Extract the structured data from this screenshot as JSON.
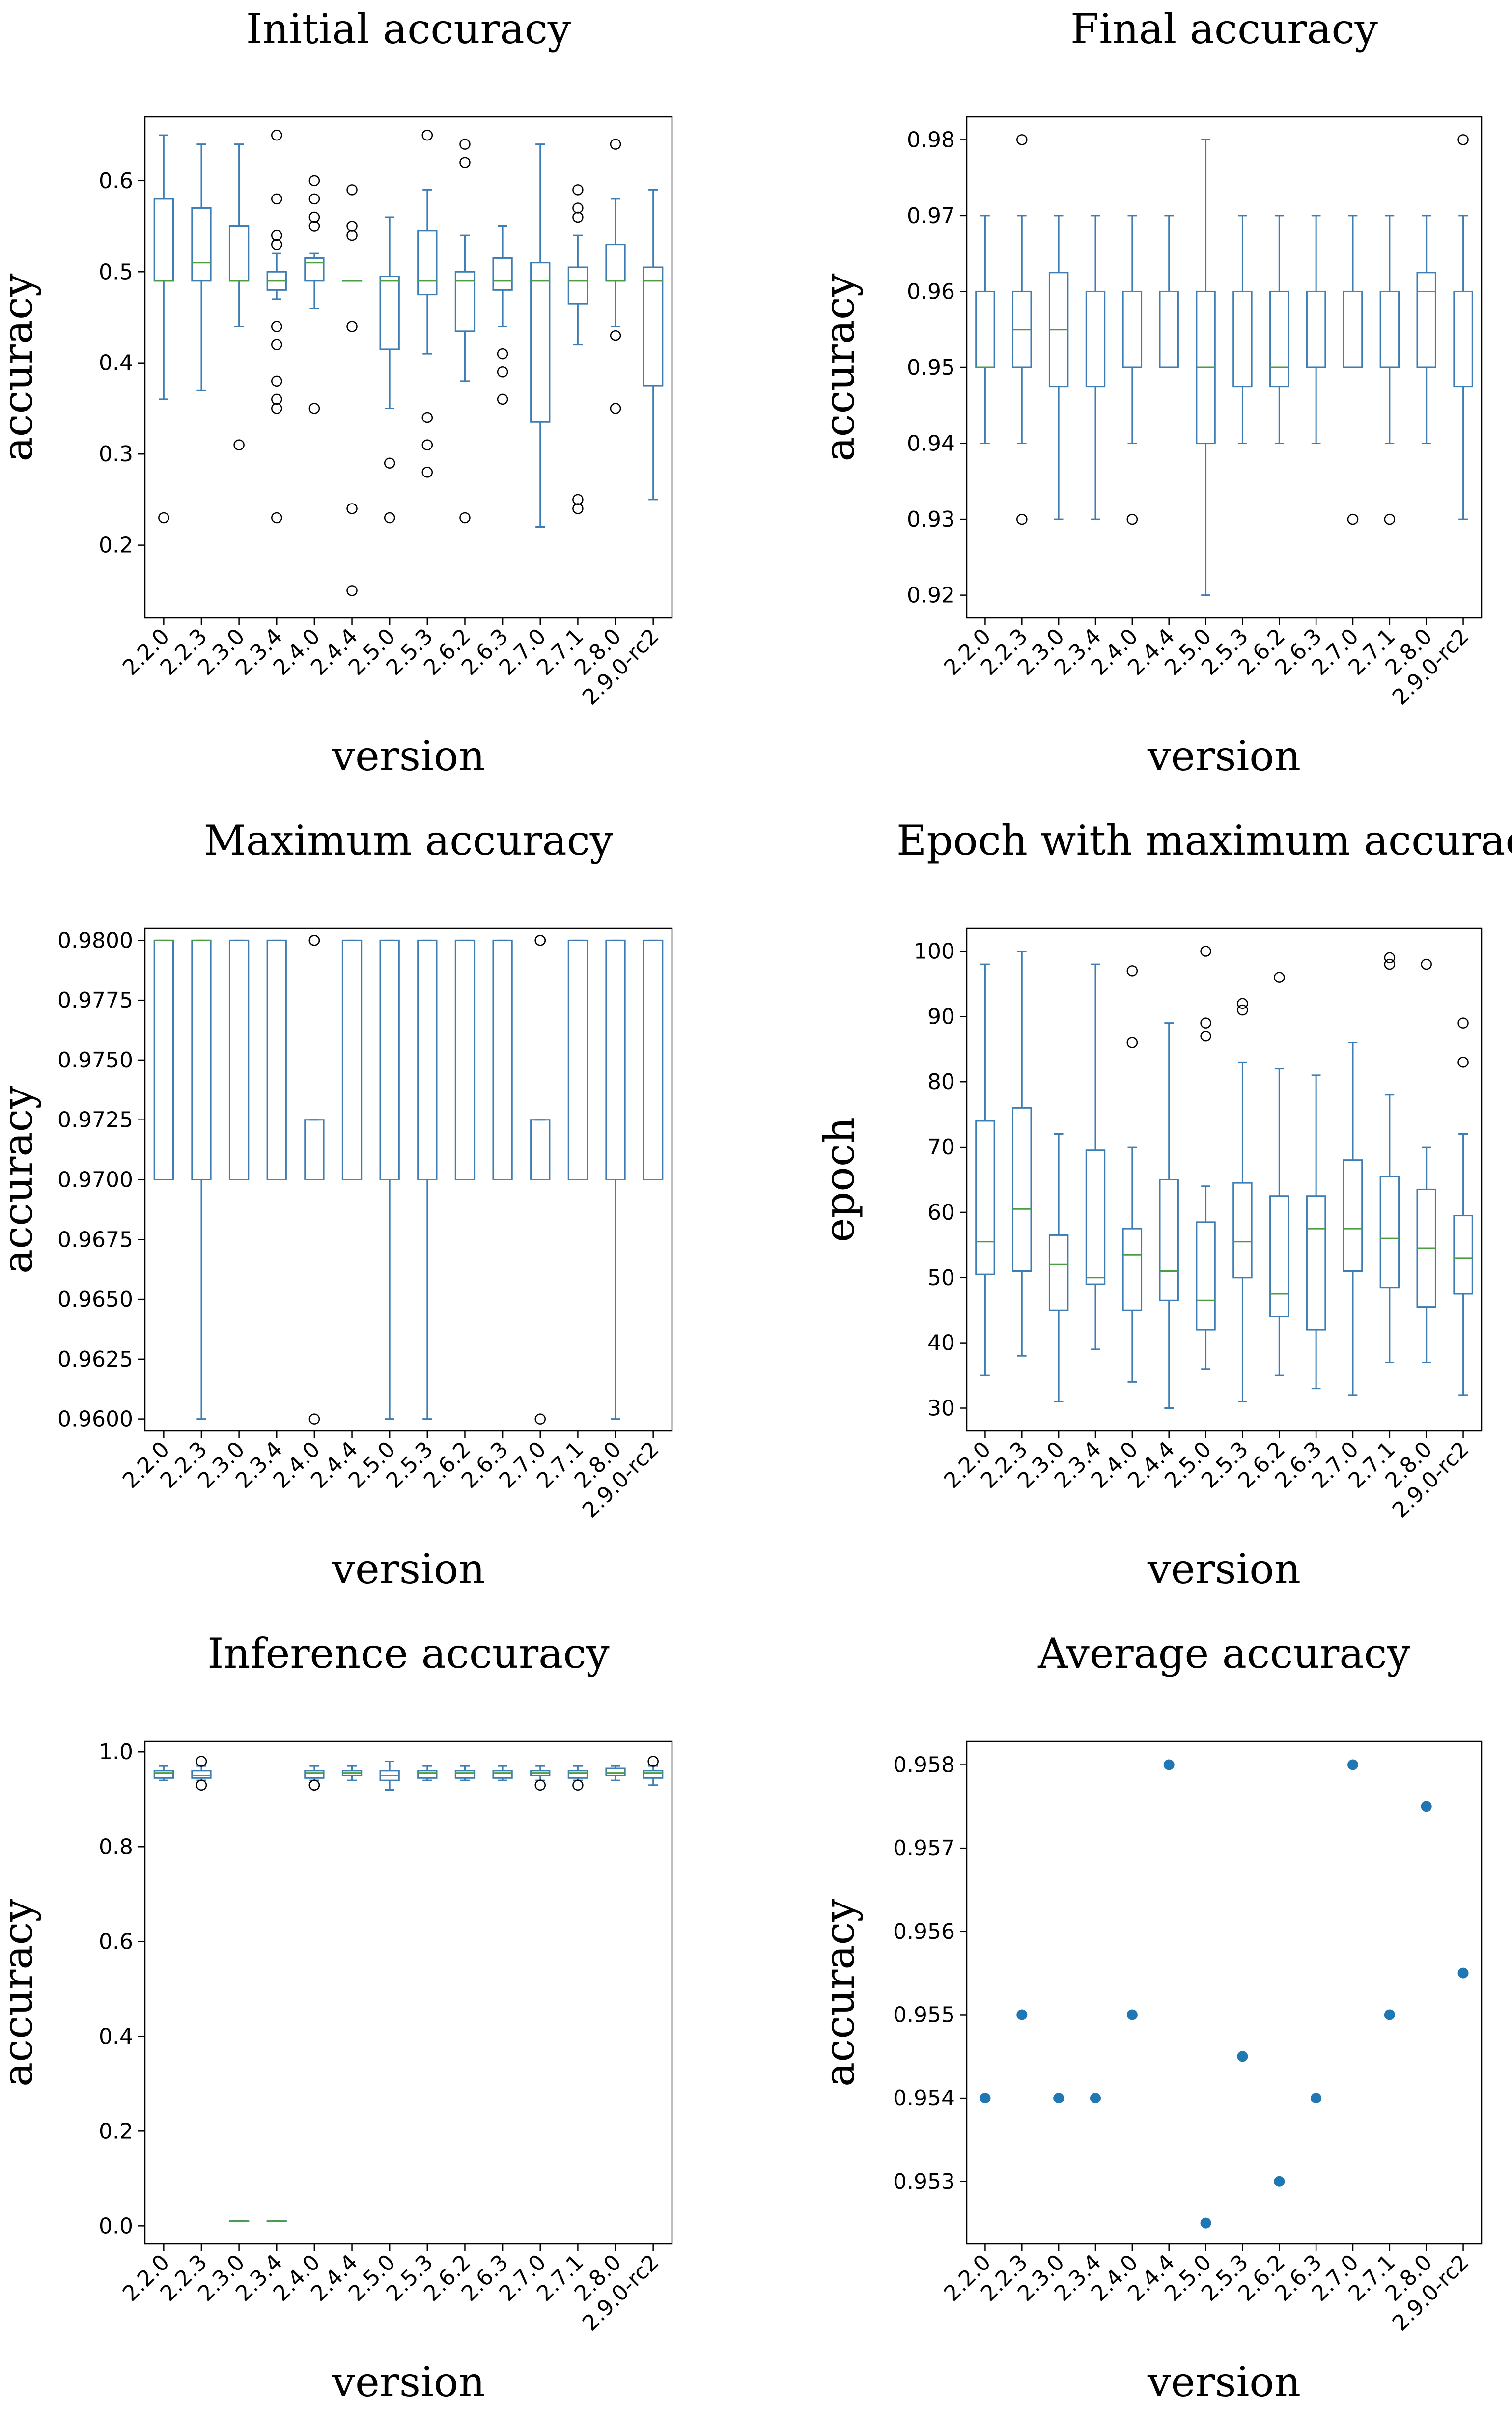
{
  "colors": {
    "box": "#3b7db4",
    "median": "#4a9e3f",
    "flier": "#000000",
    "scatter": "#1f77b4",
    "frame": "#000000"
  },
  "chart_data": [
    {
      "id": "initial",
      "type": "box",
      "title": "Initial accuracy",
      "xlabel": "version",
      "ylabel": "accuracy",
      "ylim": [
        0.12,
        0.67
      ],
      "yticks": [
        "0.2",
        "0.3",
        "0.4",
        "0.5",
        "0.6"
      ],
      "ytick_values": [
        0.2,
        0.3,
        0.4,
        0.5,
        0.6
      ],
      "categories": [
        "2.2.0",
        "2.2.3",
        "2.3.0",
        "2.3.4",
        "2.4.0",
        "2.4.4",
        "2.5.0",
        "2.5.3",
        "2.6.2",
        "2.6.3",
        "2.7.0",
        "2.7.1",
        "2.8.0",
        "2.9.0-rc2"
      ],
      "boxes": [
        {
          "min": 0.36,
          "q1": 0.49,
          "median": 0.49,
          "q3": 0.58,
          "max": 0.65,
          "fliers": [
            0.23
          ]
        },
        {
          "min": 0.37,
          "q1": 0.49,
          "median": 0.51,
          "q3": 0.57,
          "max": 0.64,
          "fliers": []
        },
        {
          "min": 0.44,
          "q1": 0.49,
          "median": 0.49,
          "q3": 0.55,
          "max": 0.64,
          "fliers": [
            0.31
          ]
        },
        {
          "min": 0.47,
          "q1": 0.48,
          "median": 0.49,
          "q3": 0.5,
          "max": 0.52,
          "fliers": [
            0.65,
            0.58,
            0.54,
            0.53,
            0.44,
            0.42,
            0.38,
            0.36,
            0.35,
            0.23
          ]
        },
        {
          "min": 0.46,
          "q1": 0.49,
          "median": 0.51,
          "q3": 0.515,
          "max": 0.52,
          "fliers": [
            0.6,
            0.58,
            0.56,
            0.55,
            0.35
          ]
        },
        {
          "min": 0.49,
          "q1": 0.49,
          "median": 0.49,
          "q3": 0.49,
          "max": 0.49,
          "fliers": [
            0.59,
            0.55,
            0.54,
            0.44,
            0.24,
            0.15
          ]
        },
        {
          "min": 0.35,
          "q1": 0.415,
          "median": 0.49,
          "q3": 0.495,
          "max": 0.56,
          "fliers": [
            0.29,
            0.23
          ]
        },
        {
          "min": 0.41,
          "q1": 0.475,
          "median": 0.49,
          "q3": 0.545,
          "max": 0.59,
          "fliers": [
            0.65,
            0.34,
            0.31,
            0.28
          ]
        },
        {
          "min": 0.38,
          "q1": 0.435,
          "median": 0.49,
          "q3": 0.5,
          "max": 0.54,
          "fliers": [
            0.64,
            0.62,
            0.23
          ]
        },
        {
          "min": 0.44,
          "q1": 0.48,
          "median": 0.49,
          "q3": 0.515,
          "max": 0.55,
          "fliers": [
            0.41,
            0.39,
            0.36
          ]
        },
        {
          "min": 0.22,
          "q1": 0.335,
          "median": 0.49,
          "q3": 0.51,
          "max": 0.64,
          "fliers": []
        },
        {
          "min": 0.42,
          "q1": 0.465,
          "median": 0.49,
          "q3": 0.505,
          "max": 0.54,
          "fliers": [
            0.59,
            0.57,
            0.56,
            0.25,
            0.24
          ]
        },
        {
          "min": 0.44,
          "q1": 0.49,
          "median": 0.49,
          "q3": 0.53,
          "max": 0.58,
          "fliers": [
            0.64,
            0.43,
            0.35
          ]
        },
        {
          "min": 0.25,
          "q1": 0.375,
          "median": 0.49,
          "q3": 0.505,
          "max": 0.59,
          "fliers": []
        }
      ]
    },
    {
      "id": "final",
      "type": "box",
      "title": "Final accuracy",
      "xlabel": "version",
      "ylabel": "accuracy",
      "ylim": [
        0.917,
        0.983
      ],
      "yticks": [
        "0.92",
        "0.93",
        "0.94",
        "0.95",
        "0.96",
        "0.97",
        "0.98"
      ],
      "ytick_values": [
        0.92,
        0.93,
        0.94,
        0.95,
        0.96,
        0.97,
        0.98
      ],
      "categories": [
        "2.2.0",
        "2.2.3",
        "2.3.0",
        "2.3.4",
        "2.4.0",
        "2.4.4",
        "2.5.0",
        "2.5.3",
        "2.6.2",
        "2.6.3",
        "2.7.0",
        "2.7.1",
        "2.8.0",
        "2.9.0-rc2"
      ],
      "boxes": [
        {
          "min": 0.94,
          "q1": 0.95,
          "median": 0.95,
          "q3": 0.96,
          "max": 0.97,
          "fliers": []
        },
        {
          "min": 0.94,
          "q1": 0.95,
          "median": 0.955,
          "q3": 0.96,
          "max": 0.97,
          "fliers": [
            0.98,
            0.93
          ]
        },
        {
          "min": 0.93,
          "q1": 0.9475,
          "median": 0.955,
          "q3": 0.9625,
          "max": 0.97,
          "fliers": []
        },
        {
          "min": 0.93,
          "q1": 0.9475,
          "median": 0.96,
          "q3": 0.96,
          "max": 0.97,
          "fliers": []
        },
        {
          "min": 0.94,
          "q1": 0.95,
          "median": 0.96,
          "q3": 0.96,
          "max": 0.97,
          "fliers": [
            0.93
          ]
        },
        {
          "min": 0.95,
          "q1": 0.95,
          "median": 0.96,
          "q3": 0.96,
          "max": 0.97,
          "fliers": []
        },
        {
          "min": 0.92,
          "q1": 0.94,
          "median": 0.95,
          "q3": 0.96,
          "max": 0.98,
          "fliers": []
        },
        {
          "min": 0.94,
          "q1": 0.9475,
          "median": 0.96,
          "q3": 0.96,
          "max": 0.97,
          "fliers": []
        },
        {
          "min": 0.94,
          "q1": 0.9475,
          "median": 0.95,
          "q3": 0.96,
          "max": 0.97,
          "fliers": []
        },
        {
          "min": 0.94,
          "q1": 0.95,
          "median": 0.96,
          "q3": 0.96,
          "max": 0.97,
          "fliers": []
        },
        {
          "min": 0.95,
          "q1": 0.95,
          "median": 0.96,
          "q3": 0.96,
          "max": 0.97,
          "fliers": [
            0.93
          ]
        },
        {
          "min": 0.94,
          "q1": 0.95,
          "median": 0.96,
          "q3": 0.96,
          "max": 0.97,
          "fliers": [
            0.93
          ]
        },
        {
          "min": 0.94,
          "q1": 0.95,
          "median": 0.96,
          "q3": 0.9625,
          "max": 0.97,
          "fliers": []
        },
        {
          "min": 0.93,
          "q1": 0.9475,
          "median": 0.96,
          "q3": 0.96,
          "max": 0.97,
          "fliers": [
            0.98
          ]
        }
      ]
    },
    {
      "id": "maximum",
      "type": "box",
      "title": "Maximum accuracy",
      "xlabel": "version",
      "ylabel": "accuracy",
      "ylim": [
        0.9595,
        0.9805
      ],
      "yticks": [
        "0.9600",
        "0.9625",
        "0.9650",
        "0.9675",
        "0.9700",
        "0.9725",
        "0.9750",
        "0.9775",
        "0.9800"
      ],
      "ytick_values": [
        0.96,
        0.9625,
        0.965,
        0.9675,
        0.97,
        0.9725,
        0.975,
        0.9775,
        0.98
      ],
      "categories": [
        "2.2.0",
        "2.2.3",
        "2.3.0",
        "2.3.4",
        "2.4.0",
        "2.4.4",
        "2.5.0",
        "2.5.3",
        "2.6.2",
        "2.6.3",
        "2.7.0",
        "2.7.1",
        "2.8.0",
        "2.9.0-rc2"
      ],
      "boxes": [
        {
          "min": 0.97,
          "q1": 0.97,
          "median": 0.98,
          "q3": 0.98,
          "max": 0.98,
          "fliers": []
        },
        {
          "min": 0.96,
          "q1": 0.97,
          "median": 0.98,
          "q3": 0.98,
          "max": 0.98,
          "fliers": []
        },
        {
          "min": 0.97,
          "q1": 0.97,
          "median": 0.97,
          "q3": 0.98,
          "max": 0.98,
          "fliers": []
        },
        {
          "min": 0.97,
          "q1": 0.97,
          "median": 0.97,
          "q3": 0.98,
          "max": 0.98,
          "fliers": []
        },
        {
          "min": 0.97,
          "q1": 0.97,
          "median": 0.97,
          "q3": 0.9725,
          "max": 0.9725,
          "fliers": [
            0.98,
            0.98,
            0.96
          ]
        },
        {
          "min": 0.97,
          "q1": 0.97,
          "median": 0.97,
          "q3": 0.98,
          "max": 0.98,
          "fliers": []
        },
        {
          "min": 0.96,
          "q1": 0.97,
          "median": 0.97,
          "q3": 0.98,
          "max": 0.98,
          "fliers": []
        },
        {
          "min": 0.96,
          "q1": 0.97,
          "median": 0.97,
          "q3": 0.98,
          "max": 0.98,
          "fliers": []
        },
        {
          "min": 0.97,
          "q1": 0.97,
          "median": 0.97,
          "q3": 0.98,
          "max": 0.98,
          "fliers": []
        },
        {
          "min": 0.97,
          "q1": 0.97,
          "median": 0.97,
          "q3": 0.98,
          "max": 0.98,
          "fliers": []
        },
        {
          "min": 0.97,
          "q1": 0.97,
          "median": 0.97,
          "q3": 0.9725,
          "max": 0.9725,
          "fliers": [
            0.98,
            0.98,
            0.96
          ]
        },
        {
          "min": 0.97,
          "q1": 0.97,
          "median": 0.97,
          "q3": 0.98,
          "max": 0.98,
          "fliers": []
        },
        {
          "min": 0.96,
          "q1": 0.97,
          "median": 0.97,
          "q3": 0.98,
          "max": 0.98,
          "fliers": []
        },
        {
          "min": 0.97,
          "q1": 0.97,
          "median": 0.97,
          "q3": 0.98,
          "max": 0.98,
          "fliers": []
        }
      ]
    },
    {
      "id": "epoch",
      "type": "box",
      "title": "Epoch with maximum accuracy",
      "xlabel": "version",
      "ylabel": "epoch",
      "ylim": [
        26.5,
        103.5
      ],
      "yticks": [
        "30",
        "40",
        "50",
        "60",
        "70",
        "80",
        "90",
        "100"
      ],
      "ytick_values": [
        30,
        40,
        50,
        60,
        70,
        80,
        90,
        100
      ],
      "categories": [
        "2.2.0",
        "2.2.3",
        "2.3.0",
        "2.3.4",
        "2.4.0",
        "2.4.4",
        "2.5.0",
        "2.5.3",
        "2.6.2",
        "2.6.3",
        "2.7.0",
        "2.7.1",
        "2.8.0",
        "2.9.0-rc2"
      ],
      "boxes": [
        {
          "min": 35,
          "q1": 50.5,
          "median": 55.5,
          "q3": 74,
          "max": 98,
          "fliers": []
        },
        {
          "min": 38,
          "q1": 51,
          "median": 60.5,
          "q3": 76,
          "max": 100,
          "fliers": []
        },
        {
          "min": 31,
          "q1": 45,
          "median": 52,
          "q3": 56.5,
          "max": 72,
          "fliers": []
        },
        {
          "min": 39,
          "q1": 49,
          "median": 50,
          "q3": 69.5,
          "max": 98,
          "fliers": []
        },
        {
          "min": 34,
          "q1": 45,
          "median": 53.5,
          "q3": 57.5,
          "max": 70,
          "fliers": [
            97,
            86
          ]
        },
        {
          "min": 30,
          "q1": 46.5,
          "median": 51,
          "q3": 65,
          "max": 89,
          "fliers": []
        },
        {
          "min": 36,
          "q1": 42,
          "median": 46.5,
          "q3": 58.5,
          "max": 64,
          "fliers": [
            100,
            89,
            87
          ]
        },
        {
          "min": 31,
          "q1": 50,
          "median": 55.5,
          "q3": 64.5,
          "max": 83,
          "fliers": [
            92,
            91
          ]
        },
        {
          "min": 35,
          "q1": 44,
          "median": 47.5,
          "q3": 62.5,
          "max": 82,
          "fliers": [
            96
          ]
        },
        {
          "min": 33,
          "q1": 42,
          "median": 57.5,
          "q3": 62.5,
          "max": 81,
          "fliers": []
        },
        {
          "min": 32,
          "q1": 51,
          "median": 57.5,
          "q3": 68,
          "max": 86,
          "fliers": []
        },
        {
          "min": 37,
          "q1": 48.5,
          "median": 56,
          "q3": 65.5,
          "max": 78,
          "fliers": [
            99,
            98
          ]
        },
        {
          "min": 37,
          "q1": 45.5,
          "median": 54.5,
          "q3": 63.5,
          "max": 70,
          "fliers": [
            98
          ]
        },
        {
          "min": 32,
          "q1": 47.5,
          "median": 53,
          "q3": 59.5,
          "max": 72,
          "fliers": [
            89,
            83
          ]
        }
      ]
    },
    {
      "id": "inference",
      "type": "box",
      "title": "Inference accuracy",
      "xlabel": "version",
      "ylabel": "accuracy",
      "ylim": [
        -0.038,
        1.022
      ],
      "yticks": [
        "0.0",
        "0.2",
        "0.4",
        "0.6",
        "0.8",
        "1.0"
      ],
      "ytick_values": [
        0.0,
        0.2,
        0.4,
        0.6,
        0.8,
        1.0
      ],
      "categories": [
        "2.2.0",
        "2.2.3",
        "2.3.0",
        "2.3.4",
        "2.4.0",
        "2.4.4",
        "2.5.0",
        "2.5.3",
        "2.6.2",
        "2.6.3",
        "2.7.0",
        "2.7.1",
        "2.8.0",
        "2.9.0-rc2"
      ],
      "boxes": [
        {
          "min": 0.94,
          "q1": 0.945,
          "median": 0.955,
          "q3": 0.96,
          "max": 0.97,
          "fliers": []
        },
        {
          "min": 0.94,
          "q1": 0.945,
          "median": 0.95,
          "q3": 0.96,
          "max": 0.97,
          "fliers": [
            0.98,
            0.93
          ]
        },
        {
          "min": 0.01,
          "q1": 0.01,
          "median": 0.01,
          "q3": 0.01,
          "max": 0.01,
          "fliers": []
        },
        {
          "min": 0.01,
          "q1": 0.01,
          "median": 0.01,
          "q3": 0.01,
          "max": 0.01,
          "fliers": []
        },
        {
          "min": 0.94,
          "q1": 0.945,
          "median": 0.955,
          "q3": 0.96,
          "max": 0.97,
          "fliers": [
            0.93,
            0.93
          ]
        },
        {
          "min": 0.94,
          "q1": 0.95,
          "median": 0.955,
          "q3": 0.96,
          "max": 0.97,
          "fliers": []
        },
        {
          "min": 0.92,
          "q1": 0.94,
          "median": 0.95,
          "q3": 0.96,
          "max": 0.98,
          "fliers": []
        },
        {
          "min": 0.94,
          "q1": 0.945,
          "median": 0.955,
          "q3": 0.96,
          "max": 0.97,
          "fliers": []
        },
        {
          "min": 0.94,
          "q1": 0.945,
          "median": 0.955,
          "q3": 0.96,
          "max": 0.97,
          "fliers": []
        },
        {
          "min": 0.94,
          "q1": 0.945,
          "median": 0.955,
          "q3": 0.96,
          "max": 0.97,
          "fliers": []
        },
        {
          "min": 0.94,
          "q1": 0.95,
          "median": 0.955,
          "q3": 0.96,
          "max": 0.97,
          "fliers": [
            0.93
          ]
        },
        {
          "min": 0.94,
          "q1": 0.945,
          "median": 0.955,
          "q3": 0.96,
          "max": 0.97,
          "fliers": [
            0.93
          ]
        },
        {
          "min": 0.94,
          "q1": 0.95,
          "median": 0.955,
          "q3": 0.965,
          "max": 0.97,
          "fliers": []
        },
        {
          "min": 0.93,
          "q1": 0.945,
          "median": 0.955,
          "q3": 0.96,
          "max": 0.97,
          "fliers": [
            0.98
          ]
        }
      ]
    },
    {
      "id": "average",
      "type": "scatter",
      "title": "Average accuracy",
      "xlabel": "version",
      "ylabel": "accuracy",
      "ylim": [
        0.95225,
        0.95828
      ],
      "yticks": [
        "0.953",
        "0.954",
        "0.955",
        "0.956",
        "0.957",
        "0.958"
      ],
      "ytick_values": [
        0.953,
        0.954,
        0.955,
        0.956,
        0.957,
        0.958
      ],
      "categories": [
        "2.2.0",
        "2.2.3",
        "2.3.0",
        "2.3.4",
        "2.4.0",
        "2.4.4",
        "2.5.0",
        "2.5.3",
        "2.6.2",
        "2.6.3",
        "2.7.0",
        "2.7.1",
        "2.8.0",
        "2.9.0-rc2"
      ],
      "values": [
        0.954,
        0.955,
        0.954,
        0.954,
        0.955,
        0.958,
        0.9525,
        0.9545,
        0.953,
        0.954,
        0.958,
        0.955,
        0.9575,
        0.9555
      ]
    }
  ]
}
